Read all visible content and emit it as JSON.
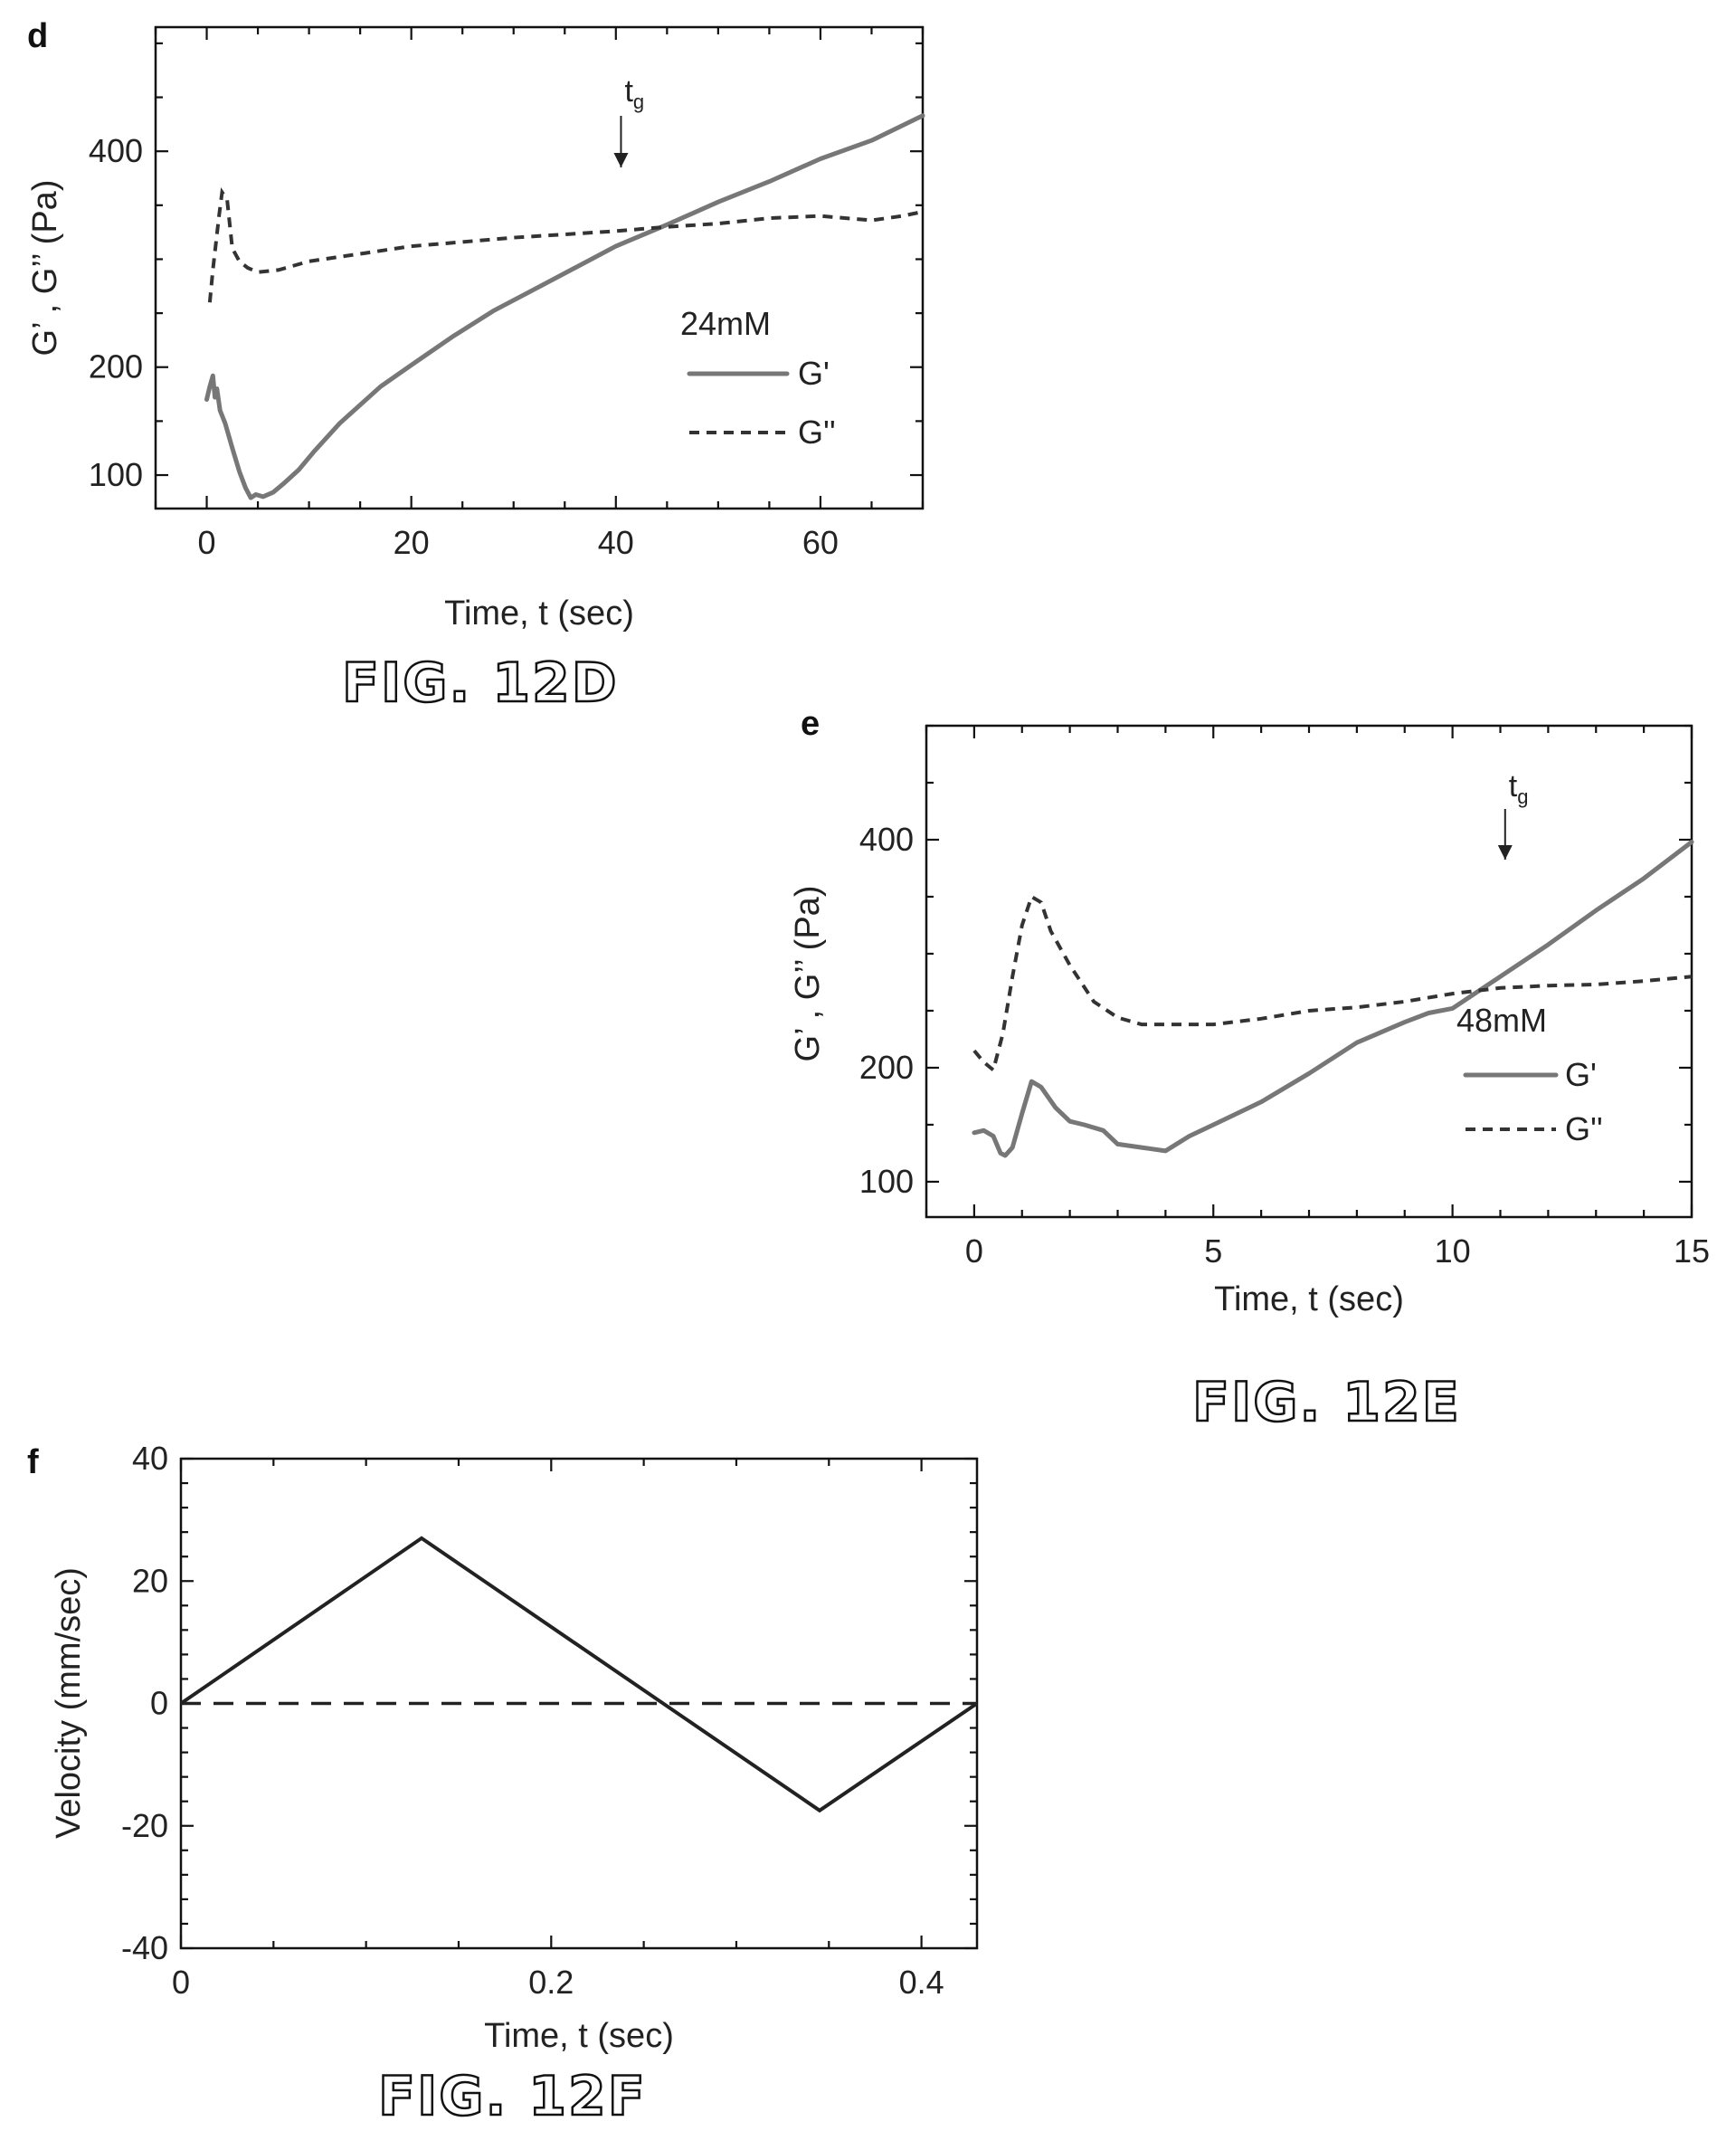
{
  "figures": [
    {
      "id": "12D",
      "caption": "FIG. 12D"
    },
    {
      "id": "12E",
      "caption": "FIG. 12E"
    },
    {
      "id": "12F",
      "caption": "FIG. 12F"
    }
  ],
  "chart_data": [
    {
      "panel_letter": "d",
      "type": "line",
      "xlabel": "Time, t (sec)",
      "ylabel": "G’ , G’’ (Pa)",
      "xlim": [
        -5,
        70
      ],
      "ylim": [
        69,
        515
      ],
      "xticks": [
        0,
        20,
        40,
        60
      ],
      "xtick_labels": [
        "0",
        "20",
        "40",
        "60"
      ],
      "yticks": [
        100,
        200,
        400
      ],
      "ytick_labels": [
        "100",
        "200",
        "400"
      ],
      "legend": {
        "title": "24mM",
        "position": "center-right",
        "items": [
          "G'",
          "G''"
        ]
      },
      "annotation": {
        "text": "t",
        "subscript": "g",
        "x": 40.5
      },
      "series": [
        {
          "name": "G'",
          "style": "solid",
          "color": "#777777",
          "x": [
            0,
            0.3,
            0.6,
            0.8,
            1.0,
            1.3,
            1.8,
            2.5,
            3.2,
            3.8,
            4.3,
            4.8,
            5.5,
            6.5,
            7.5,
            9,
            10.5,
            13,
            17,
            20,
            24,
            28,
            32,
            36,
            40,
            45,
            50,
            55,
            60,
            65,
            70
          ],
          "y": [
            170,
            182,
            192,
            172,
            180,
            160,
            148,
            125,
            103,
            88,
            79,
            82,
            80,
            84,
            92,
            105,
            122,
            148,
            182,
            202,
            228,
            252,
            272,
            292,
            312,
            332,
            353,
            372,
            393,
            410,
            433
          ]
        },
        {
          "name": "G''",
          "style": "dashed",
          "color": "#333333",
          "x": [
            0.3,
            0.6,
            0.9,
            1.2,
            1.5,
            2.0,
            2.5,
            3.2,
            4,
            5,
            7,
            10,
            15,
            20,
            25,
            30,
            35,
            40,
            45,
            50,
            55,
            60,
            65,
            68,
            70
          ],
          "y": [
            260,
            290,
            315,
            340,
            362,
            355,
            310,
            298,
            292,
            288,
            290,
            298,
            305,
            312,
            316,
            320,
            323,
            326,
            330,
            333,
            338,
            340,
            336,
            340,
            344
          ]
        }
      ]
    },
    {
      "panel_letter": "e",
      "type": "line",
      "xlabel": "Time, t (sec)",
      "ylabel": "G’ , G’’ (Pa)",
      "xlim": [
        -1,
        15
      ],
      "ylim": [
        69,
        500
      ],
      "xticks": [
        0,
        5,
        10,
        15
      ],
      "xtick_labels": [
        "0",
        "5",
        "10",
        "15"
      ],
      "yticks": [
        100,
        200,
        400
      ],
      "ytick_labels": [
        "100",
        "200",
        "400"
      ],
      "legend": {
        "title": "48mM",
        "position": "center-right",
        "items": [
          "G'",
          "G''"
        ]
      },
      "annotation": {
        "text": "t",
        "subscript": "g",
        "x": 11.1
      },
      "series": [
        {
          "name": "G'",
          "style": "solid",
          "color": "#777777",
          "x": [
            0,
            0.2,
            0.4,
            0.55,
            0.65,
            0.8,
            1.0,
            1.2,
            1.4,
            1.7,
            2.0,
            2.3,
            2.7,
            3.0,
            3.5,
            4.0,
            4.5,
            5.0,
            6,
            7,
            8,
            9,
            9.5,
            10,
            11,
            12,
            13,
            14,
            15
          ],
          "y": [
            143,
            145,
            140,
            125,
            123,
            130,
            160,
            188,
            183,
            165,
            153,
            150,
            145,
            133,
            130,
            127,
            140,
            150,
            170,
            195,
            222,
            240,
            248,
            252,
            280,
            308,
            338,
            366,
            398
          ]
        },
        {
          "name": "G''",
          "style": "dashed",
          "color": "#333333",
          "x": [
            0,
            0.2,
            0.4,
            0.6,
            0.8,
            1.0,
            1.2,
            1.4,
            1.6,
            2.0,
            2.5,
            3.0,
            3.5,
            4,
            5,
            6,
            7,
            8,
            9,
            10,
            11,
            12,
            13,
            14,
            15
          ],
          "y": [
            215,
            205,
            198,
            230,
            280,
            325,
            350,
            345,
            320,
            290,
            258,
            244,
            238,
            238,
            238,
            243,
            250,
            253,
            258,
            265,
            270,
            272,
            273,
            276,
            280
          ]
        }
      ]
    },
    {
      "panel_letter": "f",
      "type": "line",
      "xlabel": "Time, t (sec)",
      "ylabel": "Velocity (mm/sec)",
      "xlim": [
        0,
        0.43
      ],
      "ylim": [
        -40,
        40
      ],
      "xticks": [
        0,
        0.2,
        0.4
      ],
      "xtick_labels": [
        "0",
        "0.2",
        "0.4"
      ],
      "yticks": [
        -40,
        -20,
        0,
        20,
        40
      ],
      "ytick_labels": [
        "-40",
        "-20",
        "0",
        "20",
        "40"
      ],
      "series": [
        {
          "name": "",
          "style": "solid",
          "color": "#222222",
          "x": [
            0,
            0.13,
            0.345,
            0.43
          ],
          "y": [
            0,
            27,
            -17.5,
            0
          ]
        },
        {
          "name": "",
          "style": "long-dashed",
          "color": "#222222",
          "x": [
            0,
            0.43
          ],
          "y": [
            0,
            0
          ]
        }
      ]
    }
  ]
}
